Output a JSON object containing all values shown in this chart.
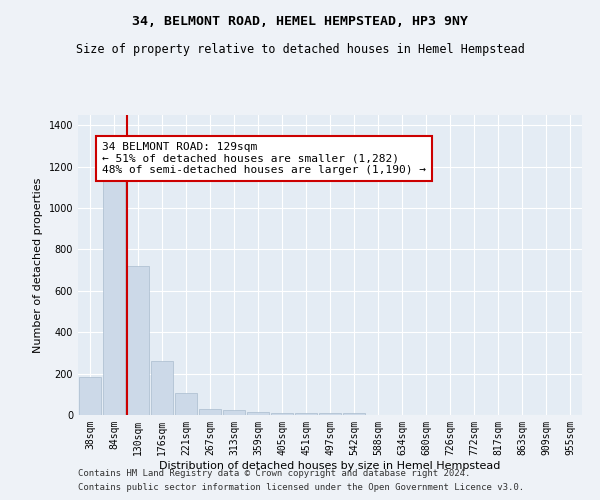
{
  "title": "34, BELMONT ROAD, HEMEL HEMPSTEAD, HP3 9NY",
  "subtitle": "Size of property relative to detached houses in Hemel Hempstead",
  "xlabel": "Distribution of detached houses by size in Hemel Hempstead",
  "ylabel": "Number of detached properties",
  "bar_color": "#ccd9e8",
  "bar_edge_color": "#aabcce",
  "categories": [
    "38sqm",
    "84sqm",
    "130sqm",
    "176sqm",
    "221sqm",
    "267sqm",
    "313sqm",
    "359sqm",
    "405sqm",
    "451sqm",
    "497sqm",
    "542sqm",
    "588sqm",
    "634sqm",
    "680sqm",
    "726sqm",
    "772sqm",
    "817sqm",
    "863sqm",
    "909sqm",
    "955sqm"
  ],
  "values": [
    185,
    1130,
    720,
    260,
    105,
    30,
    25,
    15,
    10,
    10,
    10,
    10,
    0,
    0,
    0,
    0,
    0,
    0,
    0,
    0,
    0
  ],
  "ylim": [
    0,
    1450
  ],
  "yticks": [
    0,
    200,
    400,
    600,
    800,
    1000,
    1200,
    1400
  ],
  "annotation_text": "34 BELMONT ROAD: 129sqm\n← 51% of detached houses are smaller (1,282)\n48% of semi-detached houses are larger (1,190) →",
  "vline_index": 2,
  "footer_line1": "Contains HM Land Registry data © Crown copyright and database right 2024.",
  "footer_line2": "Contains public sector information licensed under the Open Government Licence v3.0.",
  "bg_color": "#eef2f7",
  "plot_bg_color": "#e4ecf4",
  "grid_color": "#ffffff",
  "vline_color": "#cc0000",
  "annotation_box_facecolor": "#ffffff",
  "annotation_border_color": "#cc0000",
  "title_fontsize": 9.5,
  "subtitle_fontsize": 8.5,
  "label_fontsize": 8,
  "tick_fontsize": 7,
  "annotation_fontsize": 8,
  "footer_fontsize": 6.5
}
